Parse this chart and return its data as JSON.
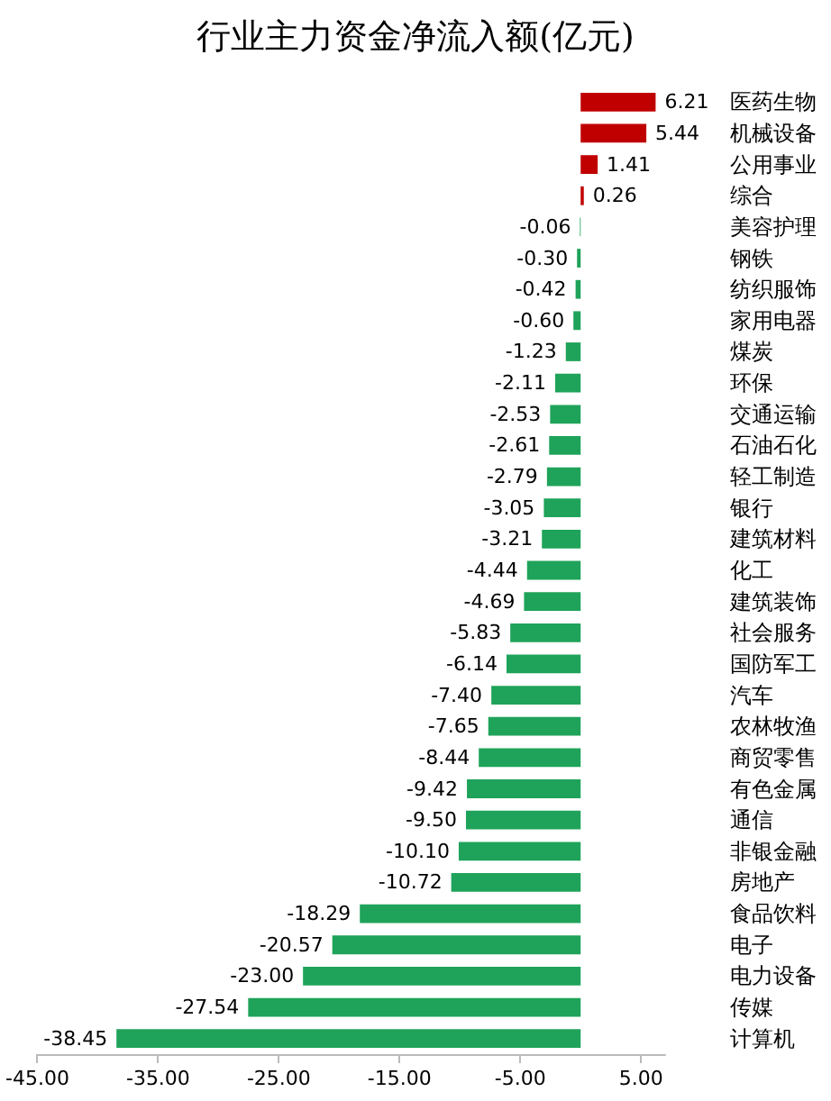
{
  "chart_data": {
    "type": "bar",
    "orientation": "horizontal",
    "title": "行业主力资金净流入额(亿元)",
    "categories": [
      "医药生物",
      "机械设备",
      "公用事业",
      "综合",
      "美容护理",
      "钢铁",
      "纺织服饰",
      "家用电器",
      "煤炭",
      "环保",
      "交通运输",
      "石油石化",
      "轻工制造",
      "银行",
      "建筑材料",
      "化工",
      "建筑装饰",
      "社会服务",
      "国防军工",
      "汽车",
      "农林牧渔",
      "商贸零售",
      "有色金属",
      "通信",
      "非银金融",
      "房地产",
      "食品饮料",
      "电子",
      "电力设备",
      "传媒",
      "计算机"
    ],
    "values": [
      6.21,
      5.44,
      1.41,
      0.26,
      -0.06,
      -0.3,
      -0.42,
      -0.6,
      -1.23,
      -2.11,
      -2.53,
      -2.61,
      -2.79,
      -3.05,
      -3.21,
      -4.44,
      -4.69,
      -5.83,
      -6.14,
      -7.4,
      -7.65,
      -8.44,
      -9.42,
      -9.5,
      -10.1,
      -10.72,
      -18.29,
      -20.57,
      -23.0,
      -27.54,
      -38.45
    ],
    "colors": [
      "#c00000",
      "#c00000",
      "#c00000",
      "#c00000",
      "#1fa35a",
      "#1fa35a",
      "#1fa35a",
      "#1fa35a",
      "#1fa35a",
      "#1fa35a",
      "#1fa35a",
      "#1fa35a",
      "#1fa35a",
      "#1fa35a",
      "#1fa35a",
      "#1fa35a",
      "#1fa35a",
      "#1fa35a",
      "#1fa35a",
      "#1fa35a",
      "#1fa35a",
      "#1fa35a",
      "#1fa35a",
      "#1fa35a",
      "#1fa35a",
      "#1fa35a",
      "#1fa35a",
      "#1fa35a",
      "#1fa35a",
      "#1fa35a",
      "#1fa35a"
    ],
    "xlim": [
      -45,
      7
    ],
    "xticks": [
      {
        "value": -45,
        "label": "-45.00"
      },
      {
        "value": -35,
        "label": "-35.00"
      },
      {
        "value": -25,
        "label": "-25.00"
      },
      {
        "value": -15,
        "label": "-15.00"
      },
      {
        "value": -5,
        "label": "-5.00"
      },
      {
        "value": 5,
        "label": "5.00"
      }
    ],
    "value_labels": [
      "6.21",
      "5.44",
      "1.41",
      "0.26",
      "-0.06",
      "-0.30",
      "-0.42",
      "-0.60",
      "-1.23",
      "-2.11",
      "-2.53",
      "-2.61",
      "-2.79",
      "-3.05",
      "-3.21",
      "-4.44",
      "-4.69",
      "-5.83",
      "-6.14",
      "-7.40",
      "-7.65",
      "-8.44",
      "-9.42",
      "-9.50",
      "-10.10",
      "-10.72",
      "-18.29",
      "-20.57",
      "-23.00",
      "-27.54",
      "-38.45"
    ],
    "grid": false
  }
}
